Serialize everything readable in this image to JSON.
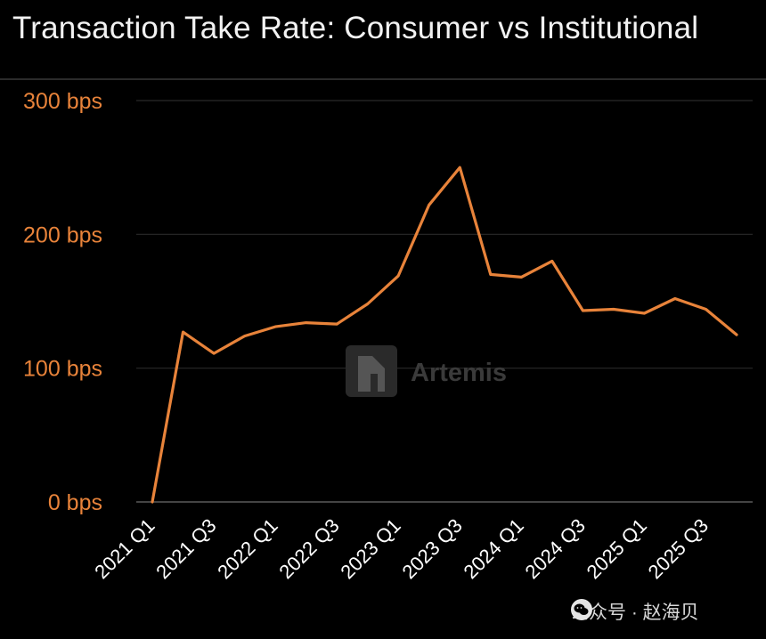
{
  "title": "Transaction Take Rate: Consumer vs Institutional",
  "watermark": "Artemis",
  "credit": "公众号 · 赵海贝",
  "colors": {
    "line": "#E8833A",
    "tick": "#E8833A",
    "grid": "#2a2a2a",
    "background": "#000000"
  },
  "chart_data": {
    "type": "line",
    "title": "Transaction Take Rate: Consumer vs Institutional",
    "xlabel": "",
    "ylabel": "",
    "y_unit": "bps",
    "ylim": [
      0,
      300
    ],
    "yticks": [
      0,
      100,
      200,
      300
    ],
    "ytick_labels": [
      "0 bps",
      "100 bps",
      "200 bps",
      "300 bps"
    ],
    "grid": true,
    "x": [
      "2021 Q1",
      "2021 Q2",
      "2021 Q3",
      "2021 Q4",
      "2022 Q1",
      "2022 Q2",
      "2022 Q3",
      "2022 Q4",
      "2023 Q1",
      "2023 Q2",
      "2023 Q3",
      "2023 Q4",
      "2024 Q1",
      "2024 Q2",
      "2024 Q3",
      "2024 Q4",
      "2025 Q1",
      "2025 Q2",
      "2025 Q3",
      "2025 Q4"
    ],
    "xtick_labels": [
      "2021 Q1",
      "2021 Q3",
      "2022 Q1",
      "2022 Q3",
      "2023 Q1",
      "2023 Q3",
      "2024 Q1",
      "2024 Q3",
      "2025 Q1",
      "2025 Q3"
    ],
    "series": [
      {
        "values": [
          0,
          127,
          111,
          124,
          131,
          134,
          133,
          148,
          169,
          222,
          250,
          170,
          168,
          180,
          143,
          144,
          141,
          152,
          144,
          125
        ]
      }
    ]
  }
}
